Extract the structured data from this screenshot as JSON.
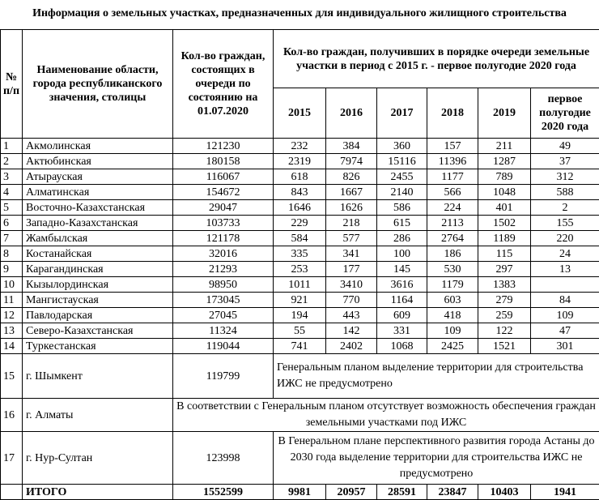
{
  "title": "Информация о земельных участках, предназначенных для индивидуального жилищного строительства",
  "headers": {
    "num": "№ п/п",
    "name": "Наименование области, города республиканского значения, столицы",
    "queue": "Кол-во граждан, состоящих в очереди по состоянию на 01.07.2020",
    "received": "Кол-во граждан, получивших в порядке очереди земельные участки в период с 2015 г. - первое полугодие 2020 года",
    "years": [
      "2015",
      "2016",
      "2017",
      "2018",
      "2019",
      "первое полугодие 2020 года"
    ]
  },
  "rows": [
    {
      "n": "1",
      "name": "Акмолинская",
      "queue": "121230",
      "v": [
        "232",
        "384",
        "360",
        "157",
        "211",
        "49"
      ]
    },
    {
      "n": "2",
      "name": "Актюбинская",
      "queue": "180158",
      "v": [
        "2319",
        "7974",
        "15116",
        "11396",
        "1287",
        "37"
      ]
    },
    {
      "n": "3",
      "name": "Атырауская",
      "queue": "116067",
      "v": [
        "618",
        "826",
        "2455",
        "1177",
        "789",
        "312"
      ]
    },
    {
      "n": "4",
      "name": "Алматинская",
      "queue": "154672",
      "v": [
        "843",
        "1667",
        "2140",
        "566",
        "1048",
        "588"
      ]
    },
    {
      "n": "5",
      "name": "Восточно-Казахстанская",
      "queue": "29047",
      "v": [
        "1646",
        "1626",
        "586",
        "224",
        "401",
        "2"
      ]
    },
    {
      "n": "6",
      "name": "Западно-Казахстанская",
      "queue": "103733",
      "v": [
        "229",
        "218",
        "615",
        "2113",
        "1502",
        "155"
      ]
    },
    {
      "n": "7",
      "name": "Жамбылская",
      "queue": "121178",
      "v": [
        "584",
        "577",
        "286",
        "2764",
        "1189",
        "220"
      ]
    },
    {
      "n": "8",
      "name": "Костанайская",
      "queue": "32016",
      "v": [
        "335",
        "341",
        "100",
        "186",
        "115",
        "24"
      ]
    },
    {
      "n": "9",
      "name": "Карагандинская",
      "queue": "21293",
      "v": [
        "253",
        "177",
        "145",
        "530",
        "297",
        "13"
      ]
    },
    {
      "n": "10",
      "name": "Кызылординская",
      "queue": "98950",
      "v": [
        "1011",
        "3410",
        "3616",
        "1179",
        "1383",
        ""
      ]
    },
    {
      "n": "11",
      "name": "Мангистауская",
      "queue": "173045",
      "v": [
        "921",
        "770",
        "1164",
        "603",
        "279",
        "84"
      ]
    },
    {
      "n": "12",
      "name": "Павлодарская",
      "queue": "27045",
      "v": [
        "194",
        "443",
        "609",
        "418",
        "259",
        "109"
      ]
    },
    {
      "n": "13",
      "name": "Северо-Казахстанская",
      "queue": "11324",
      "v": [
        "55",
        "142",
        "331",
        "109",
        "122",
        "47"
      ]
    },
    {
      "n": "14",
      "name": "Туркестанская",
      "queue": "119044",
      "v": [
        "741",
        "2402",
        "1068",
        "2425",
        "1521",
        "301"
      ]
    }
  ],
  "special": [
    {
      "n": "15",
      "name": "г. Шымкент",
      "queue": "119799",
      "note": "Генеральным планом   выделение территории  для строительства ИЖС не предусмотрено"
    },
    {
      "n": "16",
      "name": "г. Алматы",
      "note": "В соответствии с Генеральным планом отсутствует возможность обеспечения граждан земельными участками под ИЖС"
    },
    {
      "n": "17",
      "name": "г. Нур-Султан",
      "queue": "123998",
      "note": "В Генеральном плане перспективного развития города Астаны до 2030 года выделение территории  для строительства ИЖС не предусмотрено"
    }
  ],
  "total": {
    "label": "ИТОГО",
    "queue": "1552599",
    "v": [
      "9981",
      "20957",
      "28591",
      "23847",
      "10403",
      "1941"
    ]
  }
}
